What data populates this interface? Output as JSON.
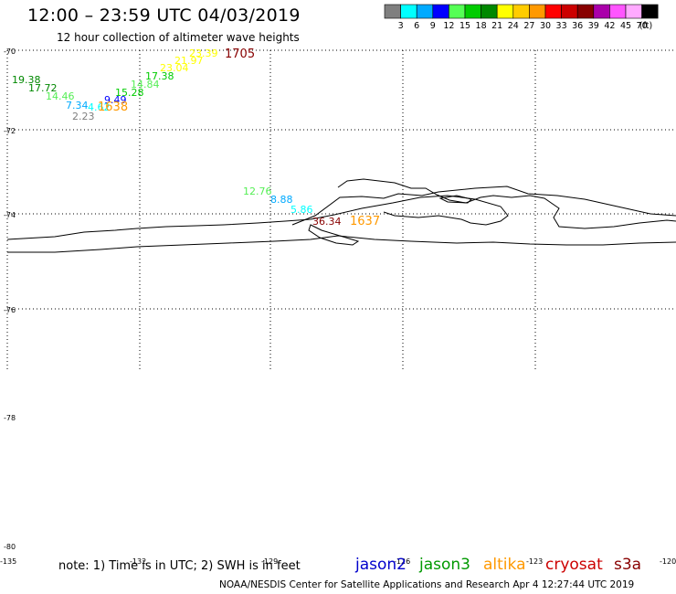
{
  "header": {
    "title": "12:00 – 23:59 UTC 04/03/2019",
    "subtitle": "12 hour collection of altimeter wave heights"
  },
  "legend": {
    "unit_label": "(ft)",
    "swatches": [
      {
        "color": "#7f7f7f",
        "label": "3"
      },
      {
        "color": "#00ffff",
        "label": "6"
      },
      {
        "color": "#00aaff",
        "label": "9"
      },
      {
        "color": "#0000ff",
        "label": "12"
      },
      {
        "color": "#55ff55",
        "label": "15"
      },
      {
        "color": "#00cc00",
        "label": "18"
      },
      {
        "color": "#008800",
        "label": "21"
      },
      {
        "color": "#ffff00",
        "label": "24"
      },
      {
        "color": "#ffcc00",
        "label": "27"
      },
      {
        "color": "#ff9900",
        "label": "30"
      },
      {
        "color": "#ff0000",
        "label": "33"
      },
      {
        "color": "#cc0000",
        "label": "36"
      },
      {
        "color": "#880000",
        "label": "39"
      },
      {
        "color": "#aa00aa",
        "label": "42"
      },
      {
        "color": "#ff55ff",
        "label": "45"
      },
      {
        "color": "#ffaaff",
        "label": "70"
      },
      {
        "color": "#000000",
        "label": ""
      }
    ]
  },
  "axes": {
    "lat_labels": [
      "-70",
      "-72",
      "-74",
      "-76",
      "-78",
      "-80"
    ],
    "lon_labels": [
      "-135",
      "-132",
      "-129",
      "-126",
      "-123",
      "-120"
    ]
  },
  "observations": [
    {
      "label": "19.38",
      "color": "#008800"
    },
    {
      "label": "17.72",
      "color": "#008800"
    },
    {
      "label": "14.46",
      "color": "#55ee55"
    },
    {
      "label": "7.34",
      "color": "#00aaff"
    },
    {
      "label": "4.62",
      "color": "#00ffff"
    },
    {
      "label": "2.23",
      "color": "#7f7f7f"
    },
    {
      "label": "9.49",
      "color": "#0000ff"
    },
    {
      "label": "1638",
      "color": "#ff9900"
    },
    {
      "label": "15.28",
      "color": "#00cc00"
    },
    {
      "label": "14.84",
      "color": "#55ee55"
    },
    {
      "label": "17.38",
      "color": "#00cc00"
    },
    {
      "label": "23.04",
      "color": "#ffff00"
    },
    {
      "label": "21.97",
      "color": "#ffff00"
    },
    {
      "label": "23.39",
      "color": "#ffff00"
    },
    {
      "label": "1705",
      "color": "#880000"
    },
    {
      "label": "12.76",
      "color": "#55ee55"
    },
    {
      "label": "8.88",
      "color": "#00aaff"
    },
    {
      "label": "5.86",
      "color": "#00ffff"
    },
    {
      "label": "36.34",
      "color": "#880000"
    },
    {
      "label": "1637",
      "color": "#ff9900"
    }
  ],
  "footer": {
    "note": "note:  1) Time is in UTC;  2) SWH is in feet",
    "credit": "NOAA/NESDIS Center for Satellite Applications and Research    Apr  4 12:27:44 UTC 2019",
    "satellites": [
      {
        "name": "jason2",
        "color": "#0000cc"
      },
      {
        "name": "jason3",
        "color": "#009900"
      },
      {
        "name": "altika",
        "color": "#ff9900"
      },
      {
        "name": "cryosat",
        "color": "#cc0000"
      },
      {
        "name": "s3a",
        "color": "#880000"
      }
    ]
  }
}
